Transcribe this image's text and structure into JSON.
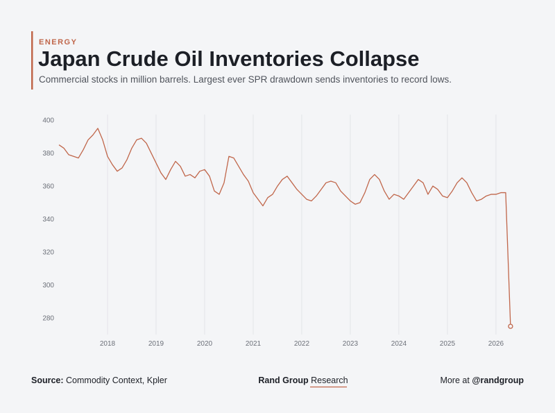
{
  "kicker": "ENERGY",
  "chart_data": {
    "type": "line",
    "title": "Japan Crude Oil Inventories Collapse",
    "subtitle": "Commercial stocks in million barrels. Largest ever SPR drawdown sends inventories to record lows.",
    "x": [
      2017.0,
      2017.1,
      2017.2,
      2017.3,
      2017.4,
      2017.5,
      2017.6,
      2017.7,
      2017.8,
      2017.9,
      2018.0,
      2018.1,
      2018.2,
      2018.3,
      2018.4,
      2018.5,
      2018.6,
      2018.7,
      2018.8,
      2018.9,
      2019.0,
      2019.1,
      2019.2,
      2019.3,
      2019.4,
      2019.5,
      2019.6,
      2019.7,
      2019.8,
      2019.9,
      2020.0,
      2020.1,
      2020.2,
      2020.3,
      2020.4,
      2020.5,
      2020.6,
      2020.7,
      2020.8,
      2020.9,
      2021.0,
      2021.1,
      2021.2,
      2021.3,
      2021.4,
      2021.5,
      2021.6,
      2021.7,
      2021.8,
      2021.9,
      2022.0,
      2022.1,
      2022.2,
      2022.3,
      2022.4,
      2022.5,
      2022.6,
      2022.7,
      2022.8,
      2022.9,
      2023.0,
      2023.1,
      2023.2,
      2023.3,
      2023.4,
      2023.5,
      2023.6,
      2023.7,
      2023.8,
      2023.9,
      2024.0,
      2024.1,
      2024.2,
      2024.3,
      2024.4,
      2024.5,
      2024.6,
      2024.7,
      2024.8,
      2024.9,
      2025.0,
      2025.1,
      2025.2,
      2025.3,
      2025.4,
      2025.5,
      2025.6,
      2025.7,
      2025.8,
      2025.9,
      2026.0,
      2026.1,
      2026.2,
      2026.3
    ],
    "series": [
      {
        "name": "Commercial stocks",
        "color": "#c0664a",
        "values": [
          385,
          383,
          379,
          378,
          377,
          382,
          388,
          391,
          395,
          388,
          378,
          373,
          369,
          371,
          376,
          383,
          388,
          389,
          386,
          380,
          374,
          368,
          364,
          370,
          375,
          372,
          366,
          367,
          365,
          369,
          370,
          366,
          357,
          355,
          362,
          378,
          377,
          372,
          367,
          363,
          356,
          352,
          348,
          353,
          355,
          360,
          364,
          366,
          362,
          358,
          355,
          352,
          351,
          354,
          358,
          362,
          363,
          362,
          357,
          354,
          351,
          349,
          350,
          356,
          364,
          367,
          364,
          357,
          352,
          355,
          354,
          352,
          356,
          360,
          364,
          362,
          355,
          360,
          358,
          354,
          353,
          357,
          362,
          365,
          362,
          356,
          351,
          352,
          354,
          355,
          355,
          356,
          356,
          275
        ]
      }
    ],
    "xlim": [
      2017.0,
      2026.43
    ],
    "xticks": [
      2018,
      2019,
      2020,
      2021,
      2022,
      2023,
      2024,
      2025,
      2026
    ],
    "ylim": [
      270,
      400
    ],
    "yticks": [
      280,
      300,
      320,
      340,
      360,
      380,
      400
    ],
    "grid": true
  },
  "footer": {
    "source_label": "Source:",
    "source": "Commodity Context, Kpler",
    "brand_bold": "Rand Group",
    "brand": "Research",
    "more": "More at",
    "handle": "@randgroup"
  }
}
